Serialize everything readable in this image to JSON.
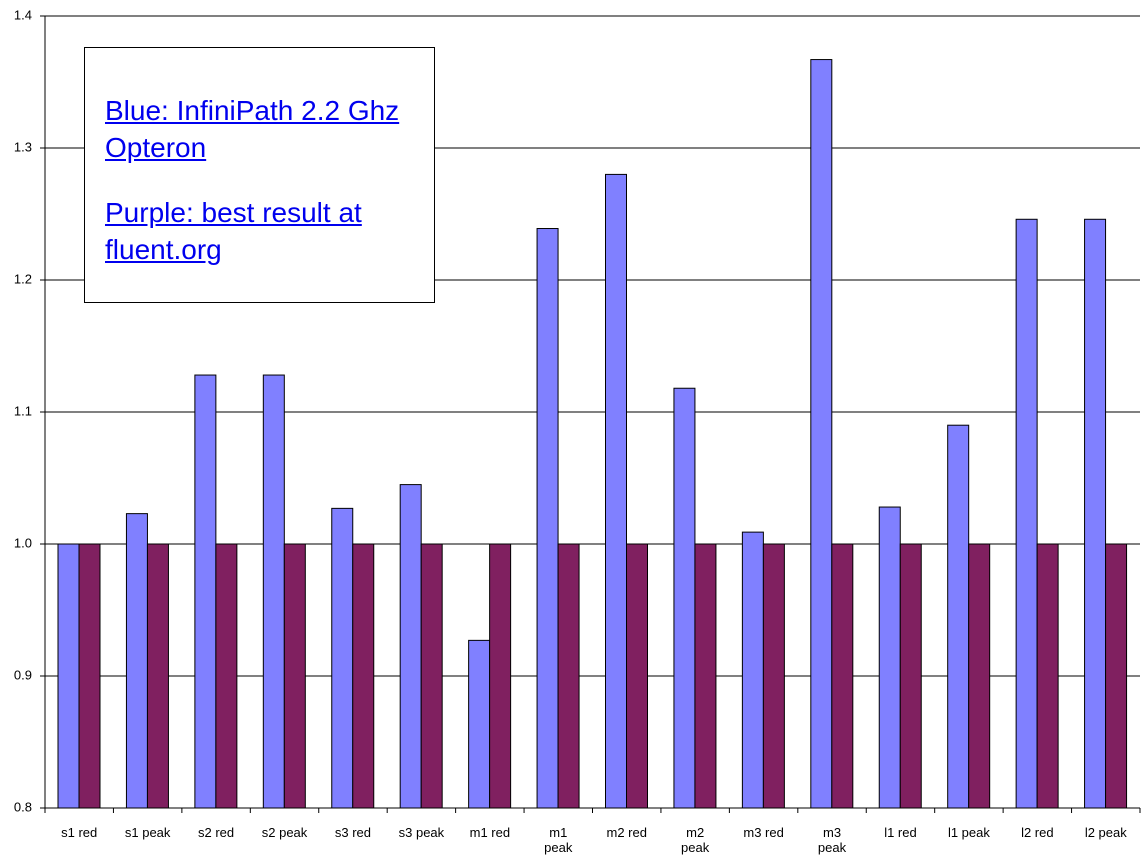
{
  "chart_data": {
    "type": "bar",
    "categories": [
      "s1 red",
      "s1 peak",
      "s2 red",
      "s2 peak",
      "s3 red",
      "s3 peak",
      "m1 red",
      "m1 peak",
      "m2 red",
      "m2 peak",
      "m3 red",
      "m3 peak",
      "l1 red",
      "l1 peak",
      "l2 red",
      "l2 peak"
    ],
    "series": [
      {
        "color": "#8080ff",
        "values": [
          1.0,
          1.023,
          1.128,
          1.128,
          1.027,
          1.045,
          0.927,
          1.239,
          1.28,
          1.118,
          1.009,
          1.367,
          1.028,
          1.09,
          1.246,
          1.246
        ]
      },
      {
        "color": "#802060",
        "values": [
          1.0,
          1.0,
          1.0,
          1.0,
          1.0,
          1.0,
          1.0,
          1.0,
          1.0,
          1.0,
          1.0,
          1.0,
          1.0,
          1.0,
          1.0,
          1.0
        ]
      }
    ],
    "ylim": [
      0.8,
      1.4
    ],
    "yticks": [
      0.8,
      0.9,
      {
        "value": 1,
        "label": "1.0"
      },
      1.1,
      1.2,
      1.3,
      1.4
    ],
    "grid": true,
    "annotations": [
      "Blue: InfiniPath 2.2 Ghz Opteron",
      "Purple: best result at fluent.org"
    ]
  }
}
